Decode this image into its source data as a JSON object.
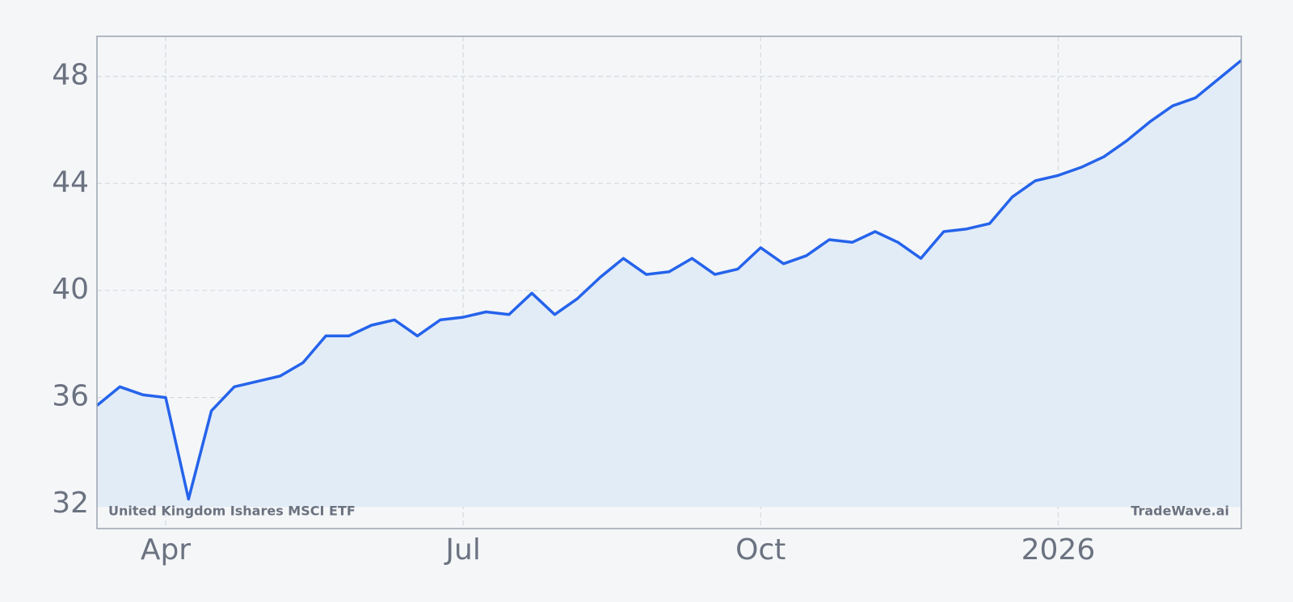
{
  "chart_data": {
    "type": "line",
    "annotations": [
      "United Kingdom Ishares MSCI ETF",
      "TradeWave.ai"
    ],
    "categories": [
      null,
      null,
      null,
      "Apr",
      null,
      null,
      null,
      null,
      null,
      null,
      null,
      null,
      null,
      null,
      null,
      null,
      "Jul",
      null,
      null,
      null,
      null,
      null,
      null,
      null,
      null,
      null,
      null,
      null,
      null,
      "Oct",
      null,
      null,
      null,
      null,
      null,
      null,
      null,
      null,
      null,
      null,
      null,
      null,
      "2026",
      null,
      null,
      null,
      null,
      null,
      null,
      null,
      null
    ],
    "series": [
      {
        "name": "United Kingdom Ishares MSCI ETF",
        "color": "#2563eb",
        "values": [
          35.7,
          36.4,
          36.1,
          36.0,
          32.2,
          35.5,
          36.4,
          36.6,
          36.8,
          37.3,
          38.3,
          38.3,
          38.7,
          38.9,
          38.3,
          38.9,
          39.0,
          39.2,
          39.1,
          39.9,
          39.1,
          39.7,
          40.5,
          41.2,
          40.6,
          40.7,
          41.2,
          40.6,
          40.8,
          41.6,
          41.0,
          41.3,
          41.9,
          41.8,
          42.2,
          41.8,
          41.2,
          42.2,
          42.3,
          42.5,
          43.5,
          44.1,
          44.3,
          44.6,
          45.0,
          45.6,
          46.3,
          46.9,
          47.2,
          47.9,
          48.6
        ]
      }
    ],
    "ylim": [
      31.1,
      49.5
    ],
    "yticks": [
      32,
      36,
      40,
      44,
      48
    ],
    "grid": true,
    "fill_color": "#e2ecf7"
  }
}
